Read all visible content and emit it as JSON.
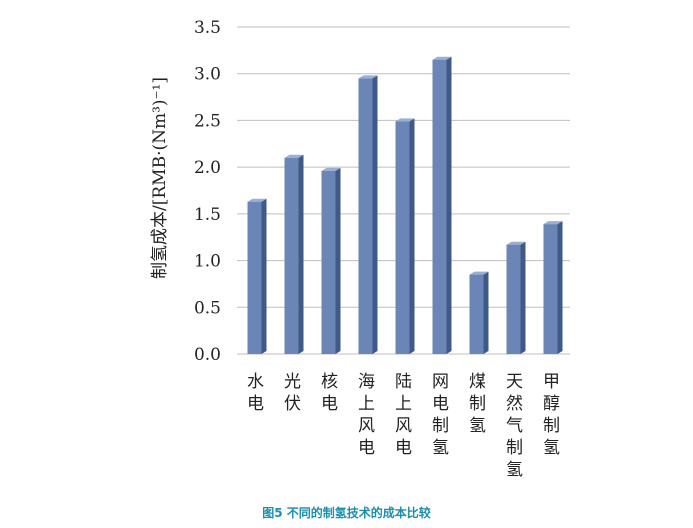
{
  "chart_data": {
    "type": "bar",
    "categories": [
      "水电",
      "光伏",
      "核电",
      "海上风电",
      "陆上风电",
      "网电制氢",
      "煤制氢",
      "天然气制氢",
      "甲醇制氢"
    ],
    "values": [
      1.63,
      2.1,
      1.96,
      2.95,
      2.49,
      3.15,
      0.85,
      1.17,
      1.39
    ],
    "ylabel": "制氢成本/[RMB·(Nm³)⁻¹]",
    "yticks": [
      "0.0",
      "0.5",
      "1.0",
      "1.5",
      "2.0",
      "2.5",
      "3.0",
      "3.5"
    ],
    "ylim": [
      0,
      3.5
    ],
    "grid": true,
    "colors": {
      "bar_front": "#6b86b6",
      "bar_side": "#3f5a87",
      "bar_top": "#98aed3",
      "grid": "#bfbfbf"
    }
  },
  "caption": "图5 不同的制氢技术的成本比较"
}
